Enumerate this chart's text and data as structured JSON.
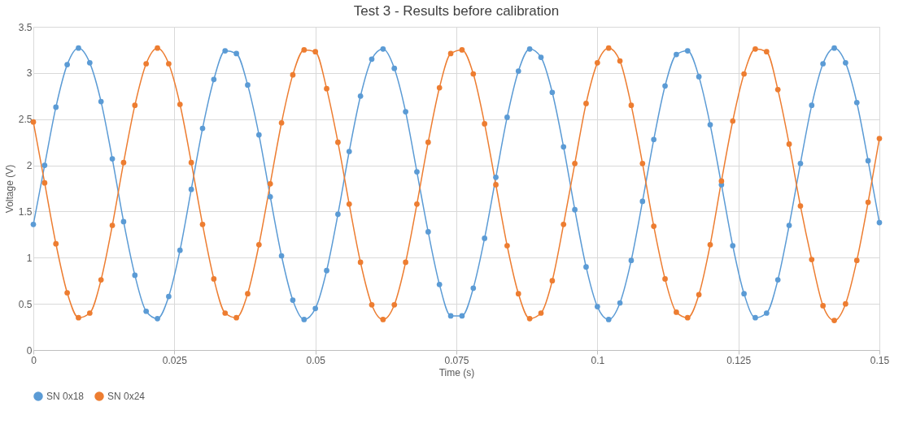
{
  "chart_data": {
    "type": "line",
    "title": "Test 3 - Results before calibration",
    "xlabel": "Time (s)",
    "ylabel": "Voltage (V)",
    "x": [
      0,
      0.002,
      0.004,
      0.006,
      0.008,
      0.01,
      0.012,
      0.014,
      0.016,
      0.018,
      0.02,
      0.022,
      0.024,
      0.026,
      0.028,
      0.03,
      0.032,
      0.034,
      0.036,
      0.038,
      0.04,
      0.042,
      0.044,
      0.046,
      0.048,
      0.05,
      0.052,
      0.054,
      0.056,
      0.058,
      0.06,
      0.062,
      0.064,
      0.066,
      0.068,
      0.07,
      0.072,
      0.074,
      0.076,
      0.078,
      0.08,
      0.082,
      0.084,
      0.086,
      0.088,
      0.09,
      0.092,
      0.094,
      0.096,
      0.098,
      0.1,
      0.102,
      0.104,
      0.106,
      0.108,
      0.11,
      0.112,
      0.114,
      0.116,
      0.118,
      0.12,
      0.122,
      0.124,
      0.126,
      0.128,
      0.13,
      0.132,
      0.134,
      0.136,
      0.138,
      0.14,
      0.142,
      0.144,
      0.146,
      0.148,
      0.15
    ],
    "series": [
      {
        "name": "SN 0x18",
        "color": "#5b9bd5",
        "values": [
          1.36,
          2.0,
          2.63,
          3.09,
          3.27,
          3.11,
          2.69,
          2.07,
          1.39,
          0.81,
          0.42,
          0.34,
          0.58,
          1.08,
          1.74,
          2.4,
          2.93,
          3.24,
          3.21,
          2.87,
          2.33,
          1.66,
          1.02,
          0.54,
          0.33,
          0.45,
          0.86,
          1.47,
          2.15,
          2.75,
          3.15,
          3.26,
          3.05,
          2.58,
          1.93,
          1.28,
          0.71,
          0.37,
          0.37,
          0.67,
          1.21,
          1.87,
          2.52,
          3.02,
          3.26,
          3.17,
          2.79,
          2.2,
          1.52,
          0.9,
          0.47,
          0.33,
          0.51,
          0.97,
          1.61,
          2.28,
          2.86,
          3.2,
          3.24,
          2.96,
          2.44,
          1.79,
          1.13,
          0.61,
          0.35,
          0.4,
          0.76,
          1.35,
          2.02,
          2.65,
          3.1,
          3.27,
          3.11,
          2.68,
          2.05,
          1.38
        ]
      },
      {
        "name": "SN 0x24",
        "color": "#ed7d31",
        "values": [
          2.47,
          1.81,
          1.15,
          0.62,
          0.35,
          0.4,
          0.76,
          1.35,
          2.03,
          2.65,
          3.1,
          3.27,
          3.1,
          2.66,
          2.03,
          1.36,
          0.77,
          0.4,
          0.35,
          0.61,
          1.14,
          1.8,
          2.46,
          2.98,
          3.25,
          3.23,
          2.83,
          2.25,
          1.58,
          0.95,
          0.49,
          0.33,
          0.49,
          0.95,
          1.58,
          2.25,
          2.84,
          3.21,
          3.25,
          2.99,
          2.45,
          1.79,
          1.13,
          0.61,
          0.34,
          0.4,
          0.75,
          1.36,
          2.02,
          2.67,
          3.11,
          3.27,
          3.13,
          2.65,
          2.02,
          1.34,
          0.77,
          0.41,
          0.35,
          0.6,
          1.14,
          1.83,
          2.48,
          2.99,
          3.26,
          3.23,
          2.82,
          2.23,
          1.56,
          0.98,
          0.48,
          0.32,
          0.5,
          0.97,
          1.6,
          2.29
        ]
      }
    ],
    "xlim": [
      0,
      0.15
    ],
    "xticks": [
      0,
      0.025,
      0.05,
      0.075,
      0.1,
      0.125,
      0.15
    ],
    "ylim": [
      0,
      3.5
    ],
    "yticks": [
      0,
      0.5,
      1,
      1.5,
      2,
      2.5,
      3,
      3.5
    ],
    "grid": true,
    "legend": "bottom",
    "marker": "circle",
    "line_style": "solid"
  }
}
